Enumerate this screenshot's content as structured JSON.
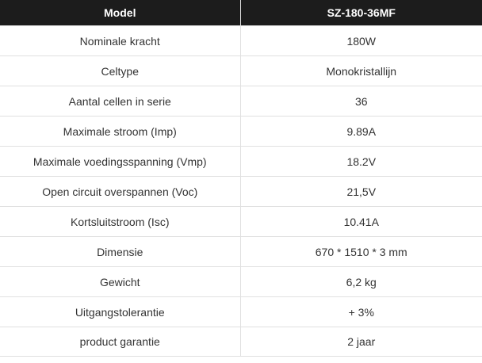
{
  "header": {
    "col1": "Model",
    "col2": "SZ-180-36MF"
  },
  "rows": [
    {
      "label": "Nominale kracht",
      "value": "180W"
    },
    {
      "label": "Celtype",
      "value": "Monokristallijn"
    },
    {
      "label": "Aantal cellen in serie",
      "value": "36"
    },
    {
      "label": "Maximale stroom (Imp)",
      "value": "9.89A"
    },
    {
      "label": "Maximale voedingsspanning (Vmp)",
      "value": "18.2V"
    },
    {
      "label": "Open circuit overspannen (Voc)",
      "value": "21,5V"
    },
    {
      "label": "Kortsluitstroom (Isc)",
      "value": "10.41A"
    },
    {
      "label": "Dimensie",
      "value": "670 * 1510 * 3 mm"
    },
    {
      "label": "Gewicht",
      "value": "6,2 kg"
    },
    {
      "label": "Uitgangstolerantie",
      "value": "+ 3%"
    },
    {
      "label": "product garantie",
      "value": "2 jaar"
    }
  ]
}
